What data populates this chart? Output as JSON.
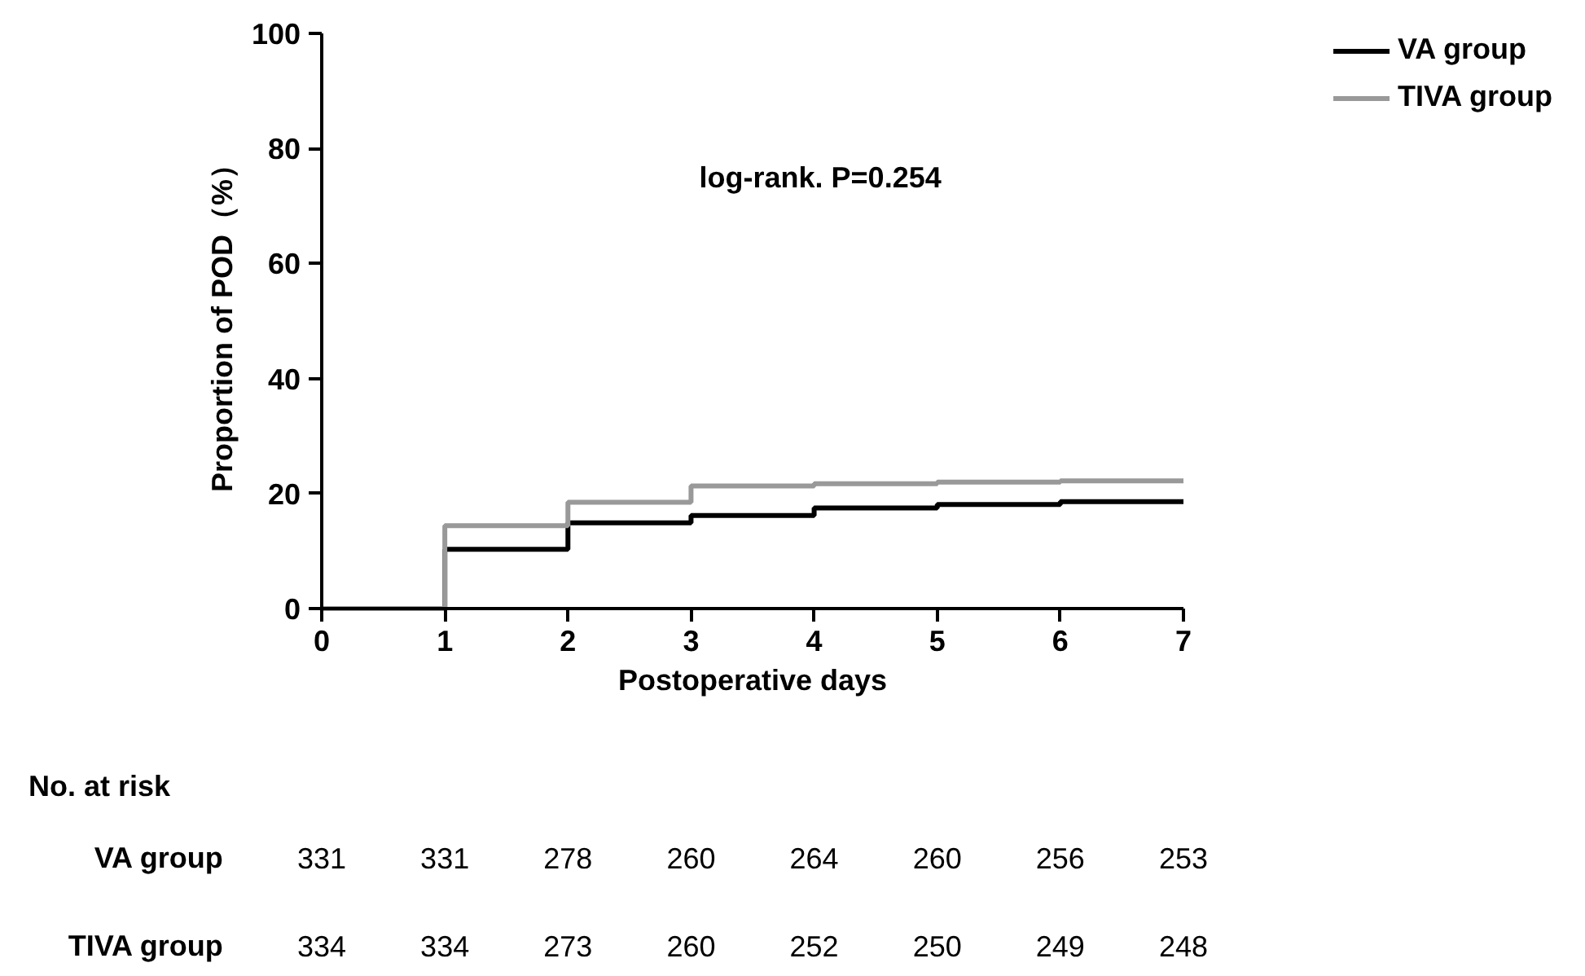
{
  "chart_data": {
    "type": "step",
    "xlabel": "Postoperative days",
    "ylabel": "Proportion of POD（%）",
    "x": [
      0,
      1,
      2,
      3,
      4,
      5,
      6,
      7
    ],
    "series": [
      {
        "name": "VA group",
        "color": "#000000",
        "values": [
          0,
          10.3,
          14.9,
          16.2,
          17.5,
          18.1,
          18.6,
          18.6
        ]
      },
      {
        "name": "TIVA group",
        "color": "#999999",
        "values": [
          0,
          14.4,
          18.5,
          21.3,
          21.7,
          22.0,
          22.2,
          22.2
        ]
      }
    ],
    "xlim": [
      0,
      7
    ],
    "xticks": [
      0,
      1,
      2,
      3,
      4,
      5,
      6,
      7
    ],
    "ylim": [
      0,
      100
    ],
    "yticks": [
      0,
      20,
      40,
      60,
      80,
      100
    ],
    "grid": false,
    "legend": "top right",
    "marker": "none",
    "line_style": "solid",
    "annotations": [
      "log-rank. P=0.254",
      "No. at risk",
      "VA group",
      "331",
      "331",
      "278",
      "260",
      "264",
      "260",
      "256",
      "253",
      "TIVA group",
      "334",
      "334",
      "273",
      "260",
      "252",
      "250",
      "249",
      "248"
    ]
  }
}
